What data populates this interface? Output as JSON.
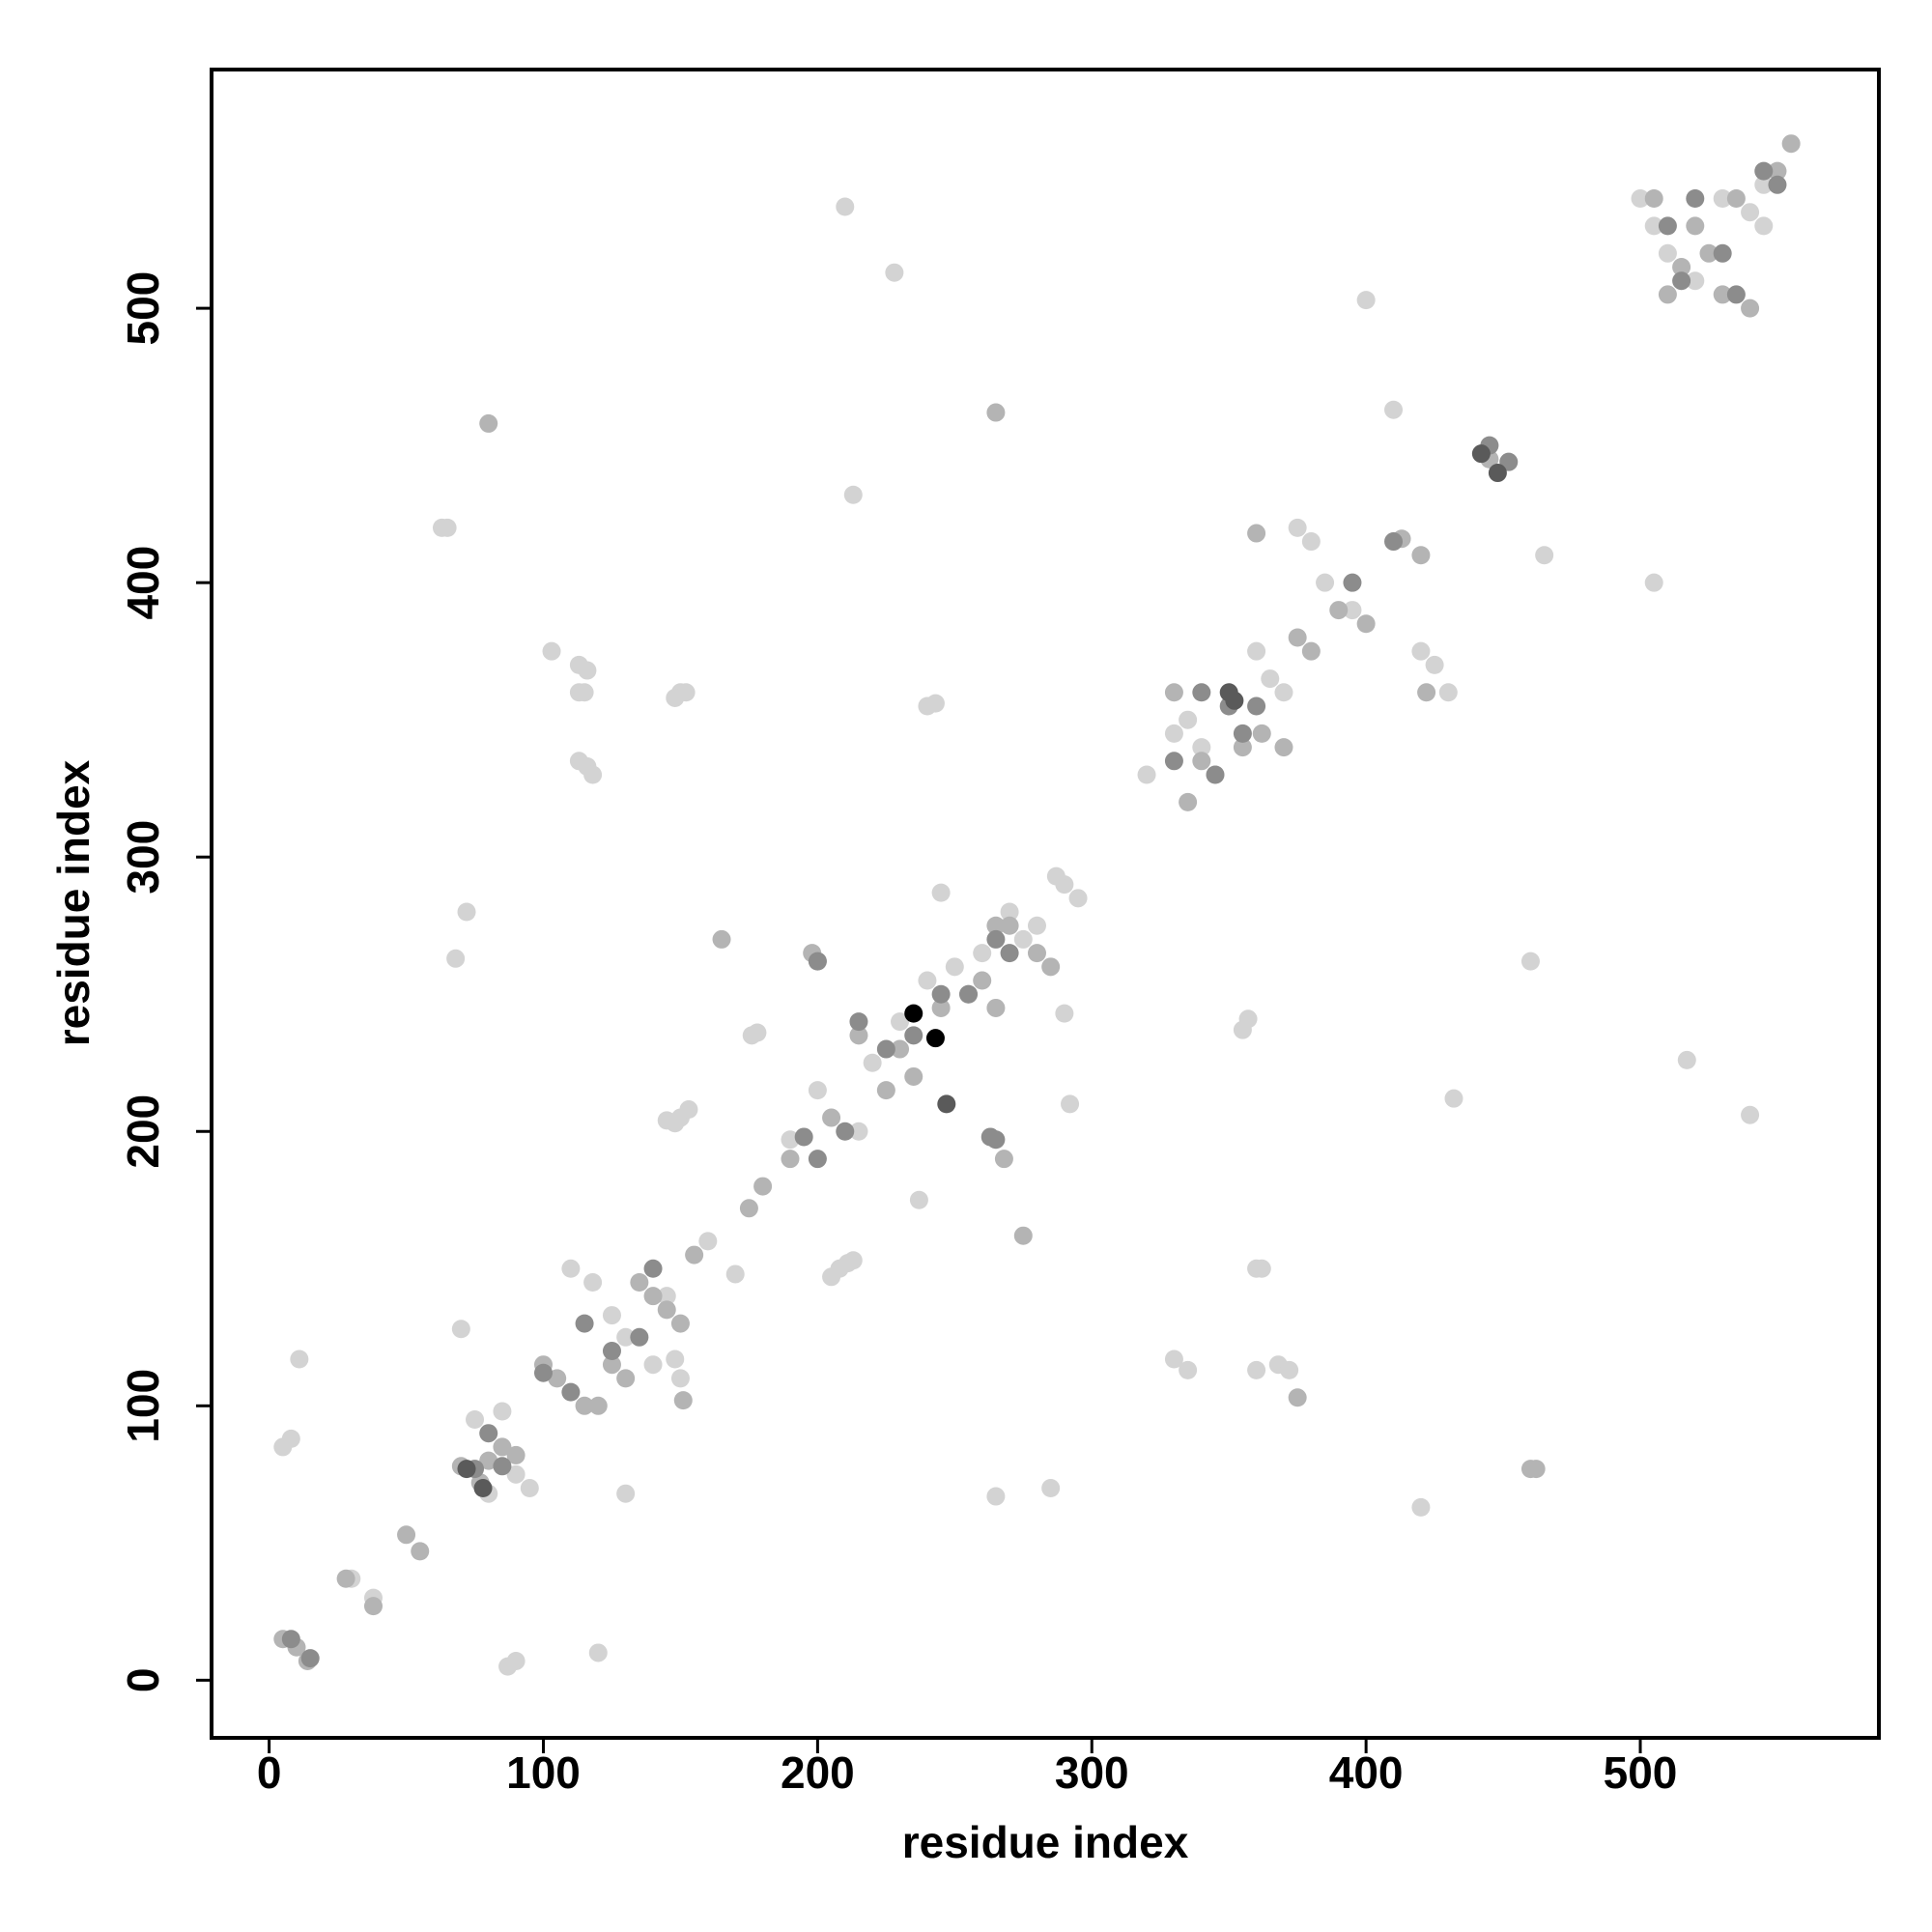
{
  "chart_data": {
    "type": "scatter",
    "x_label": "residue index",
    "y_label": "residue index",
    "xlim": [
      -21,
      587
    ],
    "ylim": [
      -21,
      587
    ],
    "xticks": [
      0,
      100,
      200,
      300,
      400,
      500
    ],
    "yticks": [
      0,
      100,
      200,
      300,
      400,
      500
    ],
    "grid": false,
    "series": [
      {
        "color": "#d3d3d3",
        "x": [
          5,
          8,
          11,
          120,
          130,
          87,
          90,
          72,
          68,
          70,
          65,
          63,
          103,
          113,
          116,
          113,
          115,
          113,
          116,
          118,
          150,
          152,
          148,
          150,
          148,
          153,
          145,
          178,
          176,
          205,
          208,
          211,
          213,
          210,
          228,
          213,
          240,
          243,
          237,
          245,
          285,
          265,
          292,
          290,
          330,
          335,
          355,
          357,
          360,
          362,
          360,
          368,
          372,
          420,
          432,
          400,
          410,
          465,
          505,
          517,
          540,
          460,
          148,
          150,
          290,
          295,
          287,
          275,
          320,
          330,
          335,
          340,
          345,
          360,
          365,
          370,
          375,
          380,
          385,
          395,
          420,
          425,
          430,
          500,
          505,
          510,
          520,
          530,
          540,
          545,
          545,
          190,
          200,
          215,
          220,
          230,
          240,
          250,
          260,
          270,
          280,
          80,
          90,
          95,
          30,
          38,
          170,
          130,
          125,
          140,
          145,
          110,
          118,
          160,
          85,
          75
        ],
        "values": [
          85,
          88,
          117,
          10,
          68,
          5,
          7,
          280,
          263,
          128,
          420,
          420,
          375,
          370,
          368,
          360,
          360,
          335,
          333,
          330,
          360,
          360,
          358,
          205,
          203,
          208,
          204,
          236,
          235,
          147,
          150,
          152,
          153,
          537,
          513,
          432,
          355,
          356,
          175,
          287,
          70,
          67,
          210,
          243,
          117,
          113,
          237,
          241,
          150,
          150,
          113,
          115,
          113,
          63,
          212,
          503,
          463,
          410,
          400,
          226,
          206,
          262,
          117,
          110,
          290,
          285,
          293,
          270,
          330,
          345,
          350,
          340,
          330,
          375,
          365,
          360,
          420,
          415,
          400,
          390,
          375,
          370,
          360,
          540,
          530,
          520,
          510,
          540,
          535,
          530,
          545,
          197,
          215,
          200,
          225,
          240,
          255,
          260,
          265,
          280,
          275,
          68,
          75,
          70,
          37,
          30,
          148,
          125,
          133,
          115,
          140,
          150,
          145,
          160,
          98,
          95
        ]
      },
      {
        "color": "#b4b4b4",
        "x": [
          5,
          10,
          14,
          50,
          55,
          28,
          38,
          80,
          265,
          165,
          200,
          198,
          275,
          268,
          151,
          265,
          360,
          413,
          420,
          422,
          375,
          380,
          390,
          400,
          330,
          335,
          340,
          355,
          362,
          370,
          375,
          445,
          460,
          462,
          505,
          510,
          515,
          520,
          525,
          530,
          535,
          540,
          550,
          555,
          230,
          235,
          245,
          255,
          260,
          225,
          215,
          205,
          190,
          180,
          175,
          155,
          100,
          105,
          115,
          120,
          125,
          130,
          135,
          140,
          145,
          150,
          80,
          85,
          90,
          70,
          77,
          270,
          280,
          285,
          265
        ],
        "values": [
          15,
          12,
          7,
          53,
          47,
          37,
          27,
          458,
          462,
          270,
          262,
          265,
          162,
          190,
          102,
          245,
          418,
          416,
          410,
          360,
          380,
          375,
          390,
          385,
          360,
          320,
          335,
          340,
          345,
          340,
          103,
          445,
          77,
          77,
          540,
          505,
          515,
          530,
          520,
          505,
          540,
          500,
          550,
          560,
          230,
          220,
          245,
          250,
          255,
          215,
          235,
          205,
          190,
          180,
          172,
          155,
          115,
          110,
          100,
          100,
          115,
          110,
          145,
          140,
          135,
          130,
          80,
          85,
          82,
          78,
          72,
          275,
          265,
          260,
          275
        ]
      },
      {
        "color": "#8c8c8c",
        "x": [
          8,
          15,
          75,
          80,
          85,
          100,
          110,
          115,
          125,
          135,
          140,
          200,
          195,
          210,
          215,
          225,
          235,
          245,
          255,
          265,
          270,
          265,
          263,
          200,
          330,
          340,
          350,
          355,
          395,
          410,
          445,
          452,
          510,
          515,
          520,
          530,
          535,
          545,
          550,
          345,
          360
        ],
        "values": [
          15,
          8,
          77,
          90,
          78,
          112,
          105,
          130,
          120,
          125,
          150,
          190,
          198,
          200,
          240,
          230,
          235,
          250,
          250,
          270,
          265,
          197,
          198,
          262,
          335,
          360,
          355,
          345,
          400,
          415,
          450,
          444,
          530,
          510,
          540,
          520,
          505,
          550,
          545,
          330,
          355
        ]
      },
      {
        "color": "#5a5a5a",
        "x": [
          72,
          78,
          442,
          448,
          247,
          350,
          352
        ],
        "values": [
          77,
          70,
          447,
          440,
          210,
          360,
          357
        ]
      },
      {
        "color": "#000000",
        "x": [
          235,
          243
        ],
        "values": [
          243,
          234
        ]
      }
    ]
  }
}
